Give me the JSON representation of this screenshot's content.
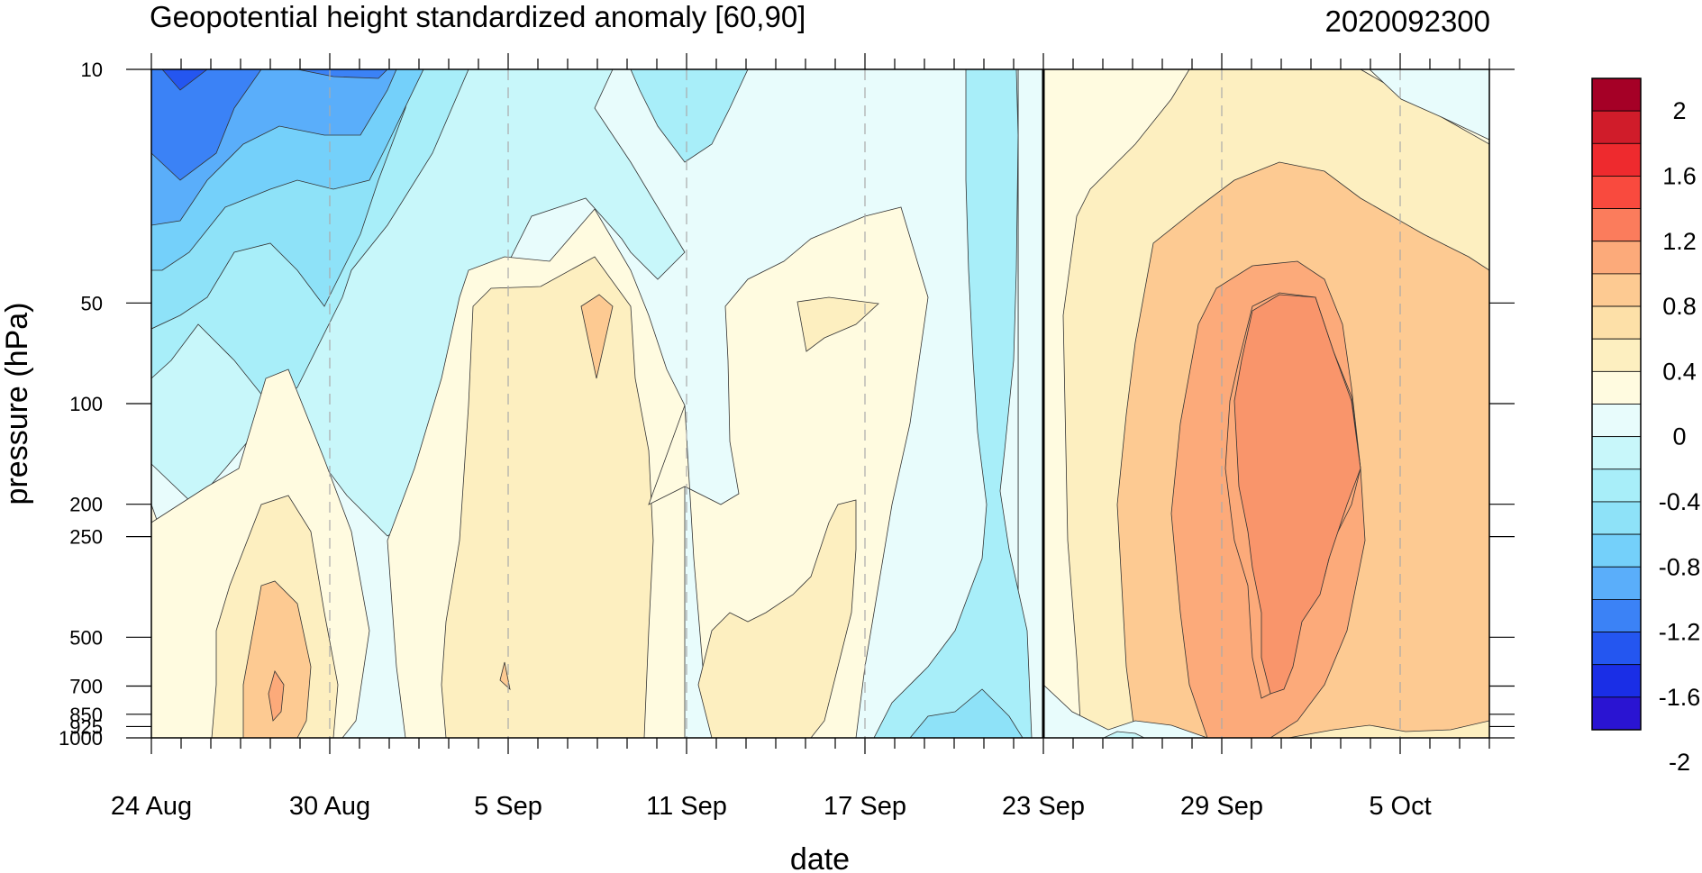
{
  "chart_data": {
    "type": "heatmap",
    "title": "Geopotential height standardized anomaly [60,90]",
    "date_stamp": "2020092300",
    "xlabel": "date",
    "ylabel": "pressure (hPa)",
    "x_ticks": [
      "24 Aug",
      "30 Aug",
      "5 Sep",
      "11 Sep",
      "17 Sep",
      "23 Sep",
      "29 Sep",
      "5 Oct"
    ],
    "x_range": [
      "24 Aug",
      "8 Oct"
    ],
    "current_date_marker": "23 Sep",
    "y_ticks": [
      "10",
      "50",
      "100",
      "200",
      "250",
      "500",
      "700",
      "850",
      "925",
      "1000"
    ],
    "y_tick_values": [
      10,
      50,
      100,
      200,
      250,
      500,
      700,
      850,
      925,
      1000
    ],
    "y_scale": "log",
    "y_reversed": true,
    "grid": "dashed vertical lines at date ticks",
    "colorbar": {
      "labels": [
        "2",
        "1.6",
        "1.2",
        "0.8",
        "0.4",
        "0",
        "-0.4",
        "-0.8",
        "-1.2",
        "-1.6",
        "-2"
      ],
      "colors": [
        "#a50026",
        "#d01c2a",
        "#ee2a2e",
        "#f94a3e",
        "#fb7c5c",
        "#fcaa7a",
        "#fdca92",
        "#fde0a8",
        "#fdefc0",
        "#fffbe0",
        "#e8fcfc",
        "#c8f7fa",
        "#a8eef9",
        "#8ee2f8",
        "#74d0fa",
        "#5aaefa",
        "#3b82f6",
        "#2456f0",
        "#1a2ee6",
        "#2a14d2"
      ]
    },
    "regions": [
      {
        "name": "strong-negative-upper-left",
        "date_range": [
          "24 Aug",
          "4 Sep"
        ],
        "pressure_range": [
          10,
          100
        ],
        "value_min": -1.6,
        "value_max": -0.4
      },
      {
        "name": "positive-near-surface-late-aug",
        "date_range": [
          "26 Aug",
          "31 Aug"
        ],
        "pressure_range": [
          200,
          1000
        ],
        "value_max": 0.8
      },
      {
        "name": "positive-early-sep",
        "date_range": [
          "4 Sep",
          "9 Sep"
        ],
        "pressure_range": [
          50,
          1000
        ],
        "value_max": 0.4
      },
      {
        "name": "negative-upper-mid-sep",
        "date_range": [
          "9 Sep",
          "13 Sep"
        ],
        "pressure_range": [
          10,
          200
        ],
        "value_min": -0.4
      },
      {
        "name": "positive-mid-sep",
        "date_range": [
          "12 Sep",
          "20 Sep"
        ],
        "pressure_range": [
          40,
          1000
        ],
        "value_max": 0.4
      },
      {
        "name": "negative-column-21-sep",
        "date_range": [
          "20 Sep",
          "22 Sep"
        ],
        "pressure_range": [
          10,
          1000
        ],
        "value_min": -0.8
      },
      {
        "name": "strong-positive-late-sep",
        "date_range": [
          "23 Sep",
          "8 Oct"
        ],
        "pressure_range": [
          10,
          1000
        ],
        "value_max": 1.2
      }
    ]
  }
}
